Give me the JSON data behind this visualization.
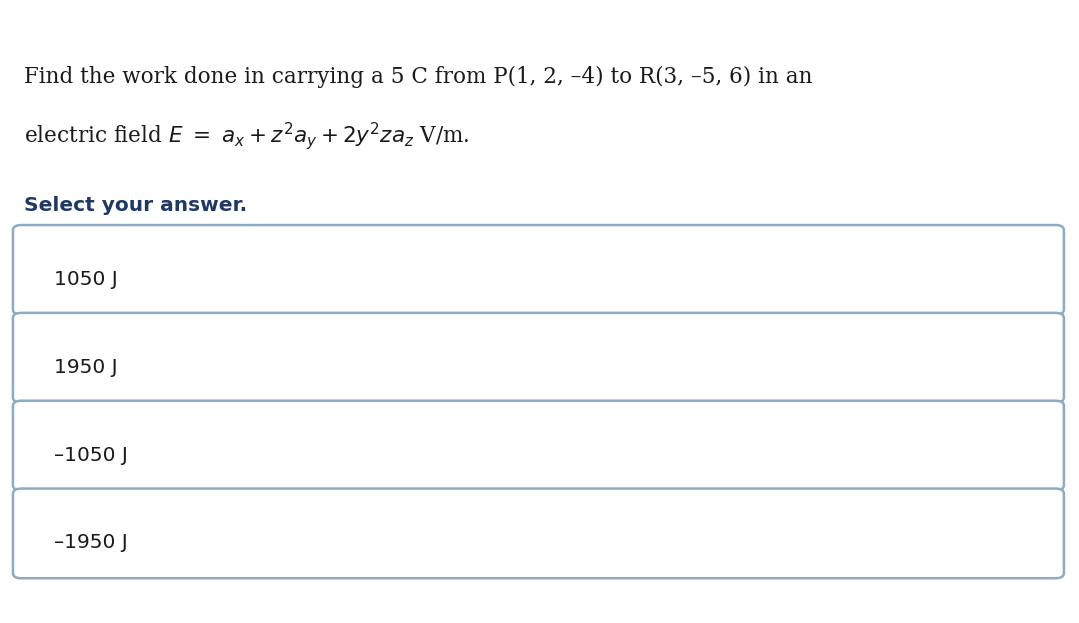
{
  "background_color": "#ffffff",
  "question_line1": "Find the work done in carrying a 5 C from P(1, 2, –4) to R(3, –5, 6) in an",
  "select_text": "Select your answer.",
  "select_color": "#1f3864",
  "options": [
    "1050 J",
    "1950 J",
    "–1050 J",
    "–1950 J"
  ],
  "box_border_color": "#8eabc4",
  "box_bg_color": "#ffffff",
  "text_color": "#1a1a1a",
  "option_text_color": "#1a1a1a",
  "q_fontsize": 15.5,
  "select_fontsize": 14.5,
  "option_fontsize": 14.5
}
